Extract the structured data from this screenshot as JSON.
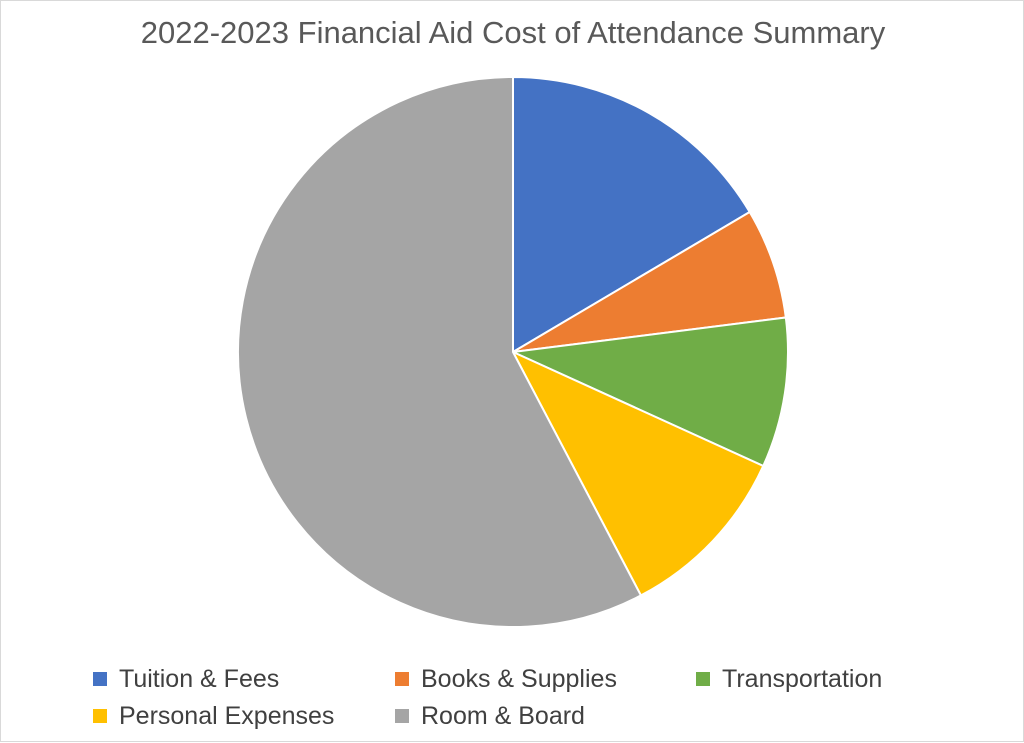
{
  "chart_data": {
    "type": "pie",
    "title": "2022-2023 Financial Aid Cost of Attendance Summary",
    "categories": [
      "Tuition & Fees",
      "Books & Supplies",
      "Transportation",
      "Personal Expenses",
      "Room & Board"
    ],
    "values": [
      16.5,
      6.5,
      8.8,
      10.5,
      57.7
    ],
    "unit": "percent",
    "colors": [
      "#4472c4",
      "#ed7d31",
      "#70ad47",
      "#ffc000",
      "#a5a5a5"
    ],
    "start_angle_deg": 0,
    "direction": "clockwise",
    "legend_position": "bottom"
  }
}
